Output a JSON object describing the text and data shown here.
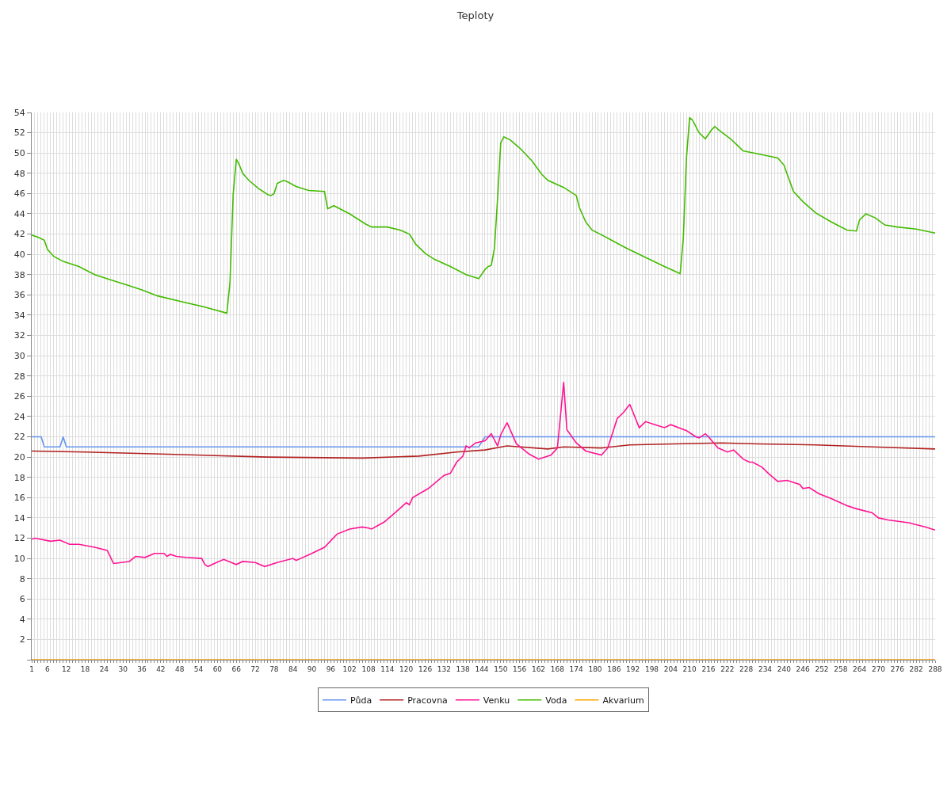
{
  "chart_data": {
    "type": "line",
    "title": "Teploty",
    "xlim": [
      1,
      288
    ],
    "ylim": [
      0,
      54
    ],
    "xticks": [
      1,
      {
        "value": 2,
        "label": null
      },
      {
        "value": 3,
        "label": null
      },
      {
        "value": 4,
        "label": null
      },
      {
        "value": 5,
        "label": null
      },
      6,
      {
        "value": 7,
        "label": null
      },
      {
        "value": 8,
        "label": null
      },
      {
        "value": 9,
        "label": null
      },
      {
        "value": 10,
        "label": null
      },
      {
        "value": 11,
        "label": null
      },
      12,
      {
        "value": 13,
        "label": null
      },
      {
        "value": 14,
        "label": null
      },
      {
        "value": 15,
        "label": null
      },
      {
        "value": 16,
        "label": null
      },
      {
        "value": 17,
        "label": null
      },
      18,
      {
        "value": 19,
        "label": null
      },
      {
        "value": 20,
        "label": null
      },
      {
        "value": 21,
        "label": null
      },
      {
        "value": 22,
        "label": null
      },
      {
        "value": 23,
        "label": null
      },
      24,
      {
        "value": 25,
        "label": null
      },
      {
        "value": 26,
        "label": null
      },
      {
        "value": 27,
        "label": null
      },
      {
        "value": 28,
        "label": null
      },
      {
        "value": 29,
        "label": null
      },
      30,
      {
        "value": 31,
        "label": null
      },
      {
        "value": 32,
        "label": null
      },
      {
        "value": 33,
        "label": null
      },
      {
        "value": 34,
        "label": null
      },
      {
        "value": 35,
        "label": null
      },
      36,
      {
        "value": 37,
        "label": null
      },
      {
        "value": 38,
        "label": null
      },
      {
        "value": 39,
        "label": null
      },
      {
        "value": 40,
        "label": null
      },
      {
        "value": 41,
        "label": null
      },
      42,
      {
        "value": 43,
        "label": null
      },
      {
        "value": 44,
        "label": null
      },
      {
        "value": 45,
        "label": null
      },
      {
        "value": 46,
        "label": null
      },
      {
        "value": 47,
        "label": null
      },
      48,
      {
        "value": 49,
        "label": null
      },
      {
        "value": 50,
        "label": null
      },
      {
        "value": 51,
        "label": null
      },
      {
        "value": 52,
        "label": null
      },
      {
        "value": 53,
        "label": null
      },
      54,
      {
        "value": 55,
        "label": null
      },
      {
        "value": 56,
        "label": null
      },
      {
        "value": 57,
        "label": null
      },
      {
        "value": 58,
        "label": null
      },
      {
        "value": 59,
        "label": null
      },
      60,
      {
        "value": 61,
        "label": null
      },
      {
        "value": 62,
        "label": null
      },
      {
        "value": 63,
        "label": null
      },
      {
        "value": 64,
        "label": null
      },
      {
        "value": 65,
        "label": null
      },
      66,
      {
        "value": 67,
        "label": null
      },
      {
        "value": 68,
        "label": null
      },
      {
        "value": 69,
        "label": null
      },
      {
        "value": 70,
        "label": null
      },
      {
        "value": 71,
        "label": null
      },
      72,
      {
        "value": 73,
        "label": null
      },
      {
        "value": 74,
        "label": null
      },
      {
        "value": 75,
        "label": null
      },
      {
        "value": 76,
        "label": null
      },
      {
        "value": 77,
        "label": null
      },
      78,
      {
        "value": 79,
        "label": null
      },
      {
        "value": 80,
        "label": null
      },
      {
        "value": 81,
        "label": null
      },
      {
        "value": 82,
        "label": null
      },
      {
        "value": 83,
        "label": null
      },
      84,
      {
        "value": 85,
        "label": null
      },
      {
        "value": 86,
        "label": null
      },
      {
        "value": 87,
        "label": null
      },
      {
        "value": 88,
        "label": null
      },
      {
        "value": 89,
        "label": null
      },
      90,
      {
        "value": 91,
        "label": null
      },
      {
        "value": 92,
        "label": null
      },
      {
        "value": 93,
        "label": null
      },
      {
        "value": 94,
        "label": null
      },
      {
        "value": 95,
        "label": null
      },
      96,
      {
        "value": 97,
        "label": null
      },
      {
        "value": 98,
        "label": null
      },
      {
        "value": 99,
        "label": null
      },
      {
        "value": 100,
        "label": null
      },
      {
        "value": 101,
        "label": null
      },
      102,
      {
        "value": 103,
        "label": null
      },
      {
        "value": 104,
        "label": null
      },
      {
        "value": 105,
        "label": null
      },
      {
        "value": 106,
        "label": null
      },
      {
        "value": 107,
        "label": null
      },
      108,
      {
        "value": 109,
        "label": null
      },
      {
        "value": 110,
        "label": null
      },
      {
        "value": 111,
        "label": null
      },
      {
        "value": 112,
        "label": null
      },
      {
        "value": 113,
        "label": null
      },
      114,
      {
        "value": 115,
        "label": null
      },
      {
        "value": 116,
        "label": null
      },
      {
        "value": 117,
        "label": null
      },
      {
        "value": 118,
        "label": null
      },
      {
        "value": 119,
        "label": null
      },
      120,
      {
        "value": 121,
        "label": null
      },
      {
        "value": 122,
        "label": null
      },
      {
        "value": 123,
        "label": null
      },
      {
        "value": 124,
        "label": null
      },
      {
        "value": 125,
        "label": null
      },
      126,
      {
        "value": 127,
        "label": null
      },
      {
        "value": 128,
        "label": null
      },
      {
        "value": 129,
        "label": null
      },
      {
        "value": 130,
        "label": null
      },
      {
        "value": 131,
        "label": null
      },
      132,
      {
        "value": 133,
        "label": null
      },
      {
        "value": 134,
        "label": null
      },
      {
        "value": 135,
        "label": null
      },
      {
        "value": 136,
        "label": null
      },
      {
        "value": 137,
        "label": null
      },
      138,
      {
        "value": 139,
        "label": null
      },
      {
        "value": 140,
        "label": null
      },
      {
        "value": 141,
        "label": null
      },
      {
        "value": 142,
        "label": null
      },
      {
        "value": 143,
        "label": null
      },
      144,
      {
        "value": 145,
        "label": null
      },
      {
        "value": 146,
        "label": null
      },
      {
        "value": 147,
        "label": null
      },
      {
        "value": 148,
        "label": null
      },
      {
        "value": 149,
        "label": null
      },
      150,
      {
        "value": 151,
        "label": null
      },
      {
        "value": 152,
        "label": null
      },
      {
        "value": 153,
        "label": null
      },
      {
        "value": 154,
        "label": null
      },
      {
        "value": 155,
        "label": null
      },
      156,
      {
        "value": 157,
        "label": null
      },
      {
        "value": 158,
        "label": null
      },
      {
        "value": 159,
        "label": null
      },
      {
        "value": 160,
        "label": null
      },
      {
        "value": 161,
        "label": null
      },
      162,
      {
        "value": 163,
        "label": null
      },
      {
        "value": 164,
        "label": null
      },
      {
        "value": 165,
        "label": null
      },
      {
        "value": 166,
        "label": null
      },
      {
        "value": 167,
        "label": null
      },
      168,
      {
        "value": 169,
        "label": null
      },
      {
        "value": 170,
        "label": null
      },
      {
        "value": 171,
        "label": null
      },
      {
        "value": 172,
        "label": null
      },
      {
        "value": 173,
        "label": null
      },
      174,
      {
        "value": 175,
        "label": null
      },
      {
        "value": 176,
        "label": null
      },
      {
        "value": 177,
        "label": null
      },
      {
        "value": 178,
        "label": null
      },
      {
        "value": 179,
        "label": null
      },
      180,
      {
        "value": 181,
        "label": null
      },
      {
        "value": 182,
        "label": null
      },
      {
        "value": 183,
        "label": null
      },
      {
        "value": 184,
        "label": null
      },
      {
        "value": 185,
        "label": null
      },
      186,
      {
        "value": 187,
        "label": null
      },
      {
        "value": 188,
        "label": null
      },
      {
        "value": 189,
        "label": null
      },
      {
        "value": 190,
        "label": null
      },
      {
        "value": 191,
        "label": null
      },
      192,
      {
        "value": 193,
        "label": null
      },
      {
        "value": 194,
        "label": null
      },
      {
        "value": 195,
        "label": null
      },
      {
        "value": 196,
        "label": null
      },
      {
        "value": 197,
        "label": null
      },
      198,
      {
        "value": 199,
        "label": null
      },
      {
        "value": 200,
        "label": null
      },
      {
        "value": 201,
        "label": null
      },
      {
        "value": 202,
        "label": null
      },
      {
        "value": 203,
        "label": null
      },
      204,
      {
        "value": 205,
        "label": null
      },
      {
        "value": 206,
        "label": null
      },
      {
        "value": 207,
        "label": null
      },
      {
        "value": 208,
        "label": null
      },
      {
        "value": 209,
        "label": null
      },
      210,
      {
        "value": 211,
        "label": null
      },
      {
        "value": 212,
        "label": null
      },
      {
        "value": 213,
        "label": null
      },
      {
        "value": 214,
        "label": null
      },
      {
        "value": 215,
        "label": null
      },
      216,
      {
        "value": 217,
        "label": null
      },
      {
        "value": 218,
        "label": null
      },
      {
        "value": 219,
        "label": null
      },
      {
        "value": 220,
        "label": null
      },
      {
        "value": 221,
        "label": null
      },
      222,
      {
        "value": 223,
        "label": null
      },
      {
        "value": 224,
        "label": null
      },
      {
        "value": 225,
        "label": null
      },
      {
        "value": 226,
        "label": null
      },
      {
        "value": 227,
        "label": null
      },
      228,
      {
        "value": 229,
        "label": null
      },
      {
        "value": 230,
        "label": null
      },
      {
        "value": 231,
        "label": null
      },
      {
        "value": 232,
        "label": null
      },
      {
        "value": 233,
        "label": null
      },
      234,
      {
        "value": 235,
        "label": null
      },
      {
        "value": 236,
        "label": null
      },
      {
        "value": 237,
        "label": null
      },
      {
        "value": 238,
        "label": null
      },
      {
        "value": 239,
        "label": null
      },
      240,
      {
        "value": 241,
        "label": null
      },
      {
        "value": 242,
        "label": null
      },
      {
        "value": 243,
        "label": null
      },
      {
        "value": 244,
        "label": null
      },
      {
        "value": 245,
        "label": null
      },
      246,
      {
        "value": 247,
        "label": null
      },
      {
        "value": 248,
        "label": null
      },
      {
        "value": 249,
        "label": null
      },
      {
        "value": 250,
        "label": null
      },
      {
        "value": 251,
        "label": null
      },
      252,
      {
        "value": 253,
        "label": null
      },
      {
        "value": 254,
        "label": null
      },
      {
        "value": 255,
        "label": null
      },
      {
        "value": 256,
        "label": null
      },
      {
        "value": 257,
        "label": null
      },
      258,
      {
        "value": 259,
        "label": null
      },
      {
        "value": 260,
        "label": null
      },
      {
        "value": 261,
        "label": null
      },
      {
        "value": 262,
        "label": null
      },
      {
        "value": 263,
        "label": null
      },
      264,
      {
        "value": 265,
        "label": null
      },
      {
        "value": 266,
        "label": null
      },
      {
        "value": 267,
        "label": null
      },
      {
        "value": 268,
        "label": null
      },
      {
        "value": 269,
        "label": null
      },
      270,
      {
        "value": 271,
        "label": null
      },
      {
        "value": 272,
        "label": null
      },
      {
        "value": 273,
        "label": null
      },
      {
        "value": 274,
        "label": null
      },
      {
        "value": 275,
        "label": null
      },
      276,
      {
        "value": 277,
        "label": null
      },
      {
        "value": 278,
        "label": null
      },
      {
        "value": 279,
        "label": null
      },
      {
        "value": 280,
        "label": null
      },
      {
        "value": 281,
        "label": null
      },
      282,
      {
        "value": 283,
        "label": null
      },
      {
        "value": 284,
        "label": null
      },
      {
        "value": 285,
        "label": null
      },
      {
        "value": 286,
        "label": null
      },
      {
        "value": 287,
        "label": null
      },
      288
    ],
    "yticks": [
      {
        "value": 0,
        "label": null
      },
      2,
      4,
      6,
      8,
      10,
      12,
      14,
      16,
      18,
      20,
      22,
      24,
      26,
      28,
      30,
      32,
      34,
      36,
      38,
      40,
      42,
      44,
      46,
      48,
      50,
      52,
      54
    ],
    "grid": true,
    "legend": "bottom",
    "marker": "none",
    "line_style": "solid",
    "series": [
      {
        "name": "Půda",
        "color": "#6495ed",
        "x": [
          1,
          4,
          5,
          10,
          11,
          12,
          143,
          145,
          288
        ],
        "values": [
          22,
          22,
          21,
          21,
          22,
          21,
          21,
          22,
          22
        ]
      },
      {
        "name": "Pracovna",
        "color": "#b22222",
        "x": [
          1,
          18,
          42,
          76,
          106,
          124,
          136,
          145,
          152,
          165,
          170,
          182,
          191,
          205,
          220,
          232,
          250,
          268,
          288
        ],
        "values": [
          20.6,
          20.5,
          20.3,
          20.0,
          19.9,
          20.1,
          20.5,
          20.7,
          21.1,
          20.8,
          21.0,
          20.9,
          21.2,
          21.3,
          21.4,
          21.3,
          21.2,
          21.0,
          20.8
        ]
      },
      {
        "name": "Venku",
        "color": "#ff1493",
        "x": [
          1,
          2,
          7,
          10,
          13,
          16,
          21,
          25,
          27,
          32,
          34,
          37,
          40,
          43,
          44,
          45,
          47,
          50,
          55,
          56,
          57,
          59,
          62,
          66,
          68,
          72,
          75,
          79,
          84,
          85,
          90,
          94,
          98,
          102,
          106,
          108,
          109,
          113,
          116,
          120,
          121,
          122,
          127,
          132,
          134,
          136,
          138,
          139,
          140,
          142,
          145,
          147,
          149,
          150,
          152,
          155,
          159,
          162,
          166,
          168,
          170,
          171,
          174,
          177,
          182,
          184,
          187,
          189,
          191,
          194,
          196,
          199,
          202,
          204,
          209,
          212,
          213,
          215,
          216,
          219,
          222,
          224,
          227,
          229,
          230,
          233,
          235,
          238,
          241,
          245,
          246,
          248,
          251,
          255,
          260,
          263,
          268,
          270,
          273,
          280,
          281,
          285,
          288
        ],
        "values": [
          11.9,
          12.0,
          11.7,
          11.8,
          11.4,
          11.4,
          11.1,
          10.8,
          9.5,
          9.7,
          10.2,
          10.1,
          10.5,
          10.5,
          10.2,
          10.4,
          10.2,
          10.1,
          10.0,
          9.4,
          9.2,
          9.5,
          9.9,
          9.4,
          9.7,
          9.6,
          9.2,
          9.6,
          10.0,
          9.8,
          10.5,
          11.1,
          12.4,
          12.9,
          13.1,
          13.0,
          12.9,
          13.6,
          14.4,
          15.5,
          15.3,
          16.0,
          16.9,
          18.2,
          18.4,
          19.5,
          20.1,
          21.1,
          20.9,
          21.4,
          21.6,
          22.3,
          21.1,
          22.2,
          23.4,
          21.3,
          20.3,
          19.8,
          20.2,
          20.9,
          27.4,
          22.7,
          21.4,
          20.6,
          20.2,
          20.9,
          23.8,
          24.4,
          25.2,
          22.9,
          23.5,
          23.2,
          22.9,
          23.2,
          22.6,
          22.0,
          21.9,
          22.3,
          22.0,
          20.9,
          20.5,
          20.7,
          19.8,
          19.5,
          19.5,
          19.0,
          18.4,
          17.6,
          17.7,
          17.3,
          16.9,
          17.0,
          16.4,
          15.9,
          15.2,
          14.9,
          14.5,
          14.0,
          13.8,
          13.5,
          13.4,
          13.1,
          12.8
        ]
      },
      {
        "name": "Voda",
        "color": "#44bb00",
        "x": [
          1,
          3,
          5,
          6,
          8,
          11,
          16,
          21,
          26,
          31,
          36,
          41,
          49,
          56,
          63,
          64,
          65,
          66,
          67,
          68,
          70,
          73,
          76,
          77,
          78,
          79,
          81,
          82,
          85,
          89,
          94,
          95,
          97,
          102,
          107,
          109,
          114,
          118,
          121,
          123,
          126,
          129,
          134,
          139,
          142,
          143,
          145,
          146,
          147,
          148,
          149,
          150,
          151,
          153,
          156,
          160,
          163,
          165,
          170,
          174,
          175,
          177,
          179,
          184,
          190,
          196,
          202,
          207,
          208,
          209,
          210,
          211,
          213,
          215,
          217,
          218,
          220,
          223,
          225,
          227,
          232,
          238,
          240,
          241,
          243,
          246,
          250,
          255,
          260,
          263,
          264,
          266,
          269,
          272,
          276,
          282,
          288
        ],
        "values": [
          41.9,
          41.7,
          41.4,
          40.5,
          39.8,
          39.3,
          38.8,
          38.0,
          37.5,
          37.0,
          36.5,
          35.9,
          35.3,
          34.8,
          34.2,
          37.3,
          45.9,
          49.4,
          48.8,
          48.0,
          47.3,
          46.5,
          45.9,
          45.8,
          46.0,
          47.0,
          47.3,
          47.2,
          46.7,
          46.3,
          46.2,
          44.5,
          44.8,
          44.0,
          43.0,
          42.7,
          42.7,
          42.4,
          42.0,
          41.0,
          40.1,
          39.5,
          38.8,
          38.0,
          37.7,
          37.6,
          38.5,
          38.8,
          38.9,
          40.6,
          45.5,
          51.0,
          51.6,
          51.3,
          50.5,
          49.2,
          47.9,
          47.3,
          46.6,
          45.8,
          44.6,
          43.2,
          42.4,
          41.6,
          40.6,
          39.7,
          38.8,
          38.1,
          41.6,
          49.5,
          53.5,
          53.2,
          52.0,
          51.4,
          52.3,
          52.6,
          52.1,
          51.4,
          50.8,
          50.2,
          49.9,
          49.5,
          48.8,
          47.9,
          46.2,
          45.2,
          44.1,
          43.2,
          42.4,
          42.3,
          43.4,
          44.0,
          43.6,
          42.9,
          42.7,
          42.5,
          42.1
        ]
      },
      {
        "name": "Akvarium",
        "color": "#ffa500",
        "x": [
          1,
          288
        ],
        "values": [
          0,
          0
        ]
      }
    ]
  }
}
